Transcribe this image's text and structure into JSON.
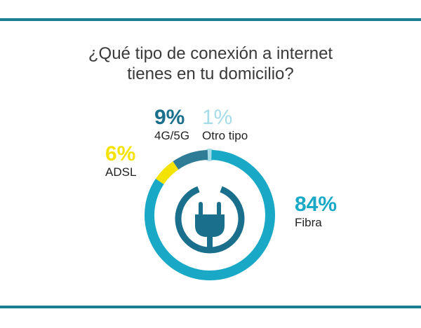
{
  "title_lines": [
    "¿Qué tipo de conexión a internet",
    "tienes en tu domicilio?"
  ],
  "colors": {
    "rule": "#1a7f93",
    "fibra": "#19a9c6",
    "adsl": "#f4e300",
    "g45": "#2e7c96",
    "otro": "#a6dce8",
    "icon": "#1a6f8c"
  },
  "icon": "power-plug-icon",
  "chart_data": {
    "type": "pie",
    "style": "donut",
    "slices": [
      {
        "label": "Fibra",
        "value": 84,
        "display": "84%",
        "color": "#19a9c6"
      },
      {
        "label": "ADSL",
        "value": 6,
        "display": "6%",
        "color": "#f4e300"
      },
      {
        "label": "4G/5G",
        "value": 9,
        "display": "9%",
        "color": "#2e7c96"
      },
      {
        "label": "Otro tipo",
        "value": 1,
        "display": "1%",
        "color": "#a6dce8"
      }
    ]
  }
}
